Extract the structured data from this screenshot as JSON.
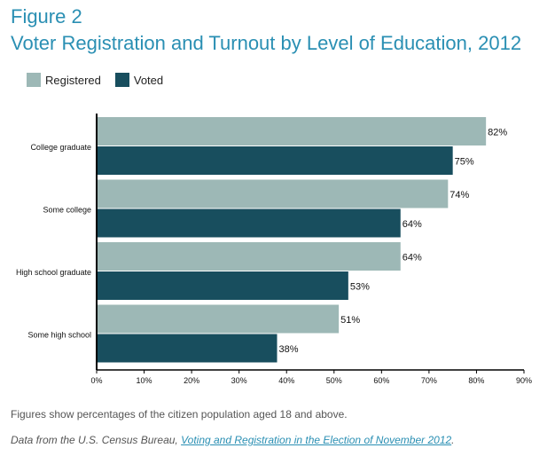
{
  "figure_label": "Figure 2",
  "title": "Voter Registration and Turnout by Level of Education, 2012",
  "footnote": "Figures show percentages of the citizen population aged 18 and above.",
  "source": {
    "prefix": "Data from the U.S. Census Bureau, ",
    "link_text": "Voting and Registration in the Election of November 2012",
    "suffix": "."
  },
  "colors": {
    "registered": "#9db8b6",
    "voted": "#184e5e",
    "accent": "#2a8fb3"
  },
  "chart_data": {
    "type": "bar",
    "orientation": "horizontal",
    "categories": [
      "College graduate",
      "Some college",
      "High school graduate",
      "Some high school"
    ],
    "series": [
      {
        "name": "Registered",
        "values": [
          82,
          74,
          64,
          51
        ],
        "labels": [
          "82%",
          "74%",
          "64%",
          "51%"
        ]
      },
      {
        "name": "Voted",
        "values": [
          75,
          64,
          53,
          38
        ],
        "labels": [
          "75%",
          "64%",
          "53%",
          "38%"
        ]
      }
    ],
    "xlim": [
      0,
      90
    ],
    "xticks": [
      0,
      10,
      20,
      30,
      40,
      50,
      60,
      70,
      80,
      90
    ],
    "xtick_labels": [
      "0%",
      "10%",
      "20%",
      "30%",
      "40%",
      "50%",
      "60%",
      "70%",
      "80%",
      "90%"
    ],
    "legend": "top-left",
    "grid": false
  }
}
